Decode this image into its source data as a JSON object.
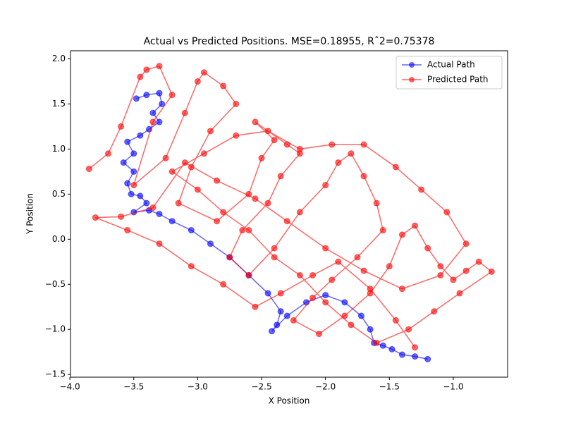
{
  "chart_data": {
    "type": "line",
    "title": "Actual vs Predicted Positions. MSE=0.18955, Rˆ2=0.75378",
    "xlabel": "X Position",
    "ylabel": "Y Position",
    "xlim": [
      -3.995,
      -0.575
    ],
    "ylim": [
      -1.53,
      2.09
    ],
    "xticks": [
      {
        "value": -4,
        "label": "−4.0"
      },
      {
        "value": -3.5,
        "label": "−3.5"
      },
      {
        "value": -3,
        "label": "−3.0"
      },
      {
        "value": -2.5,
        "label": "−2.5"
      },
      {
        "value": -2,
        "label": "−2.0"
      },
      {
        "value": -1.5,
        "label": "−1.5"
      },
      {
        "value": -1,
        "label": "−1.0"
      }
    ],
    "yticks": [
      {
        "value": -1.5,
        "label": "−1.5"
      },
      {
        "value": -1,
        "label": "−1.0"
      },
      {
        "value": -0.5,
        "label": "−0.5"
      },
      {
        "value": 0,
        "label": "0.0"
      },
      {
        "value": 0.5,
        "label": "0.5"
      },
      {
        "value": 1,
        "label": "1.0"
      },
      {
        "value": 1.5,
        "label": "1.5"
      },
      {
        "value": 2,
        "label": "2.0"
      }
    ],
    "legend": "upper right",
    "series": [
      {
        "name": "Actual Path",
        "color": "#0000ff",
        "x": [
          -3.48,
          -3.4,
          -3.3,
          -3.28,
          -3.35,
          -3.3,
          -3.38,
          -3.45,
          -3.55,
          -3.5,
          -3.58,
          -3.5,
          -3.55,
          -3.52,
          -3.45,
          -3.4,
          -3.5,
          -3.38,
          -3.3,
          -3.2,
          -3.05,
          -2.9,
          -2.75,
          -2.6,
          -2.45,
          -2.35,
          -2.38,
          -2.42,
          -2.3,
          -2.15,
          -2.0,
          -1.85,
          -1.72,
          -1.65,
          -1.62,
          -1.55,
          -1.48,
          -1.4,
          -1.3,
          -1.2
        ],
        "y": [
          1.56,
          1.6,
          1.62,
          1.5,
          1.4,
          1.3,
          1.22,
          1.15,
          1.08,
          0.95,
          0.85,
          0.75,
          0.62,
          0.5,
          0.48,
          0.4,
          0.3,
          0.32,
          0.28,
          0.2,
          0.1,
          -0.05,
          -0.2,
          -0.4,
          -0.6,
          -0.8,
          -0.95,
          -1.02,
          -0.85,
          -0.7,
          -0.62,
          -0.7,
          -0.85,
          -1.0,
          -1.15,
          -1.18,
          -1.22,
          -1.28,
          -1.3,
          -1.33
        ]
      },
      {
        "name": "Predicted Path",
        "color": "#ff0000",
        "x": [
          -3.85,
          -3.7,
          -3.6,
          -3.45,
          -3.4,
          -3.3,
          -3.2,
          -3.35,
          -3.5,
          -3.25,
          -3.1,
          -3.0,
          -2.95,
          -2.8,
          -2.7,
          -2.9,
          -3.05,
          -3.15,
          -2.85,
          -2.6,
          -2.5,
          -2.4,
          -2.55,
          -2.3,
          -2.2,
          -2.35,
          -2.45,
          -2.65,
          -2.75,
          -2.6,
          -2.4,
          -2.2,
          -2.0,
          -1.9,
          -1.8,
          -1.7,
          -1.6,
          -1.55,
          -1.75,
          -1.95,
          -2.1,
          -2.25,
          -2.05,
          -1.85,
          -1.65,
          -1.5,
          -1.4,
          -1.3,
          -1.2,
          -1.1,
          -1.0,
          -0.9,
          -0.8,
          -0.7,
          -0.95,
          -1.15,
          -1.35,
          -1.6,
          -1.8,
          -2.0,
          -2.2,
          -2.4,
          -2.6,
          -2.8,
          -3.0,
          -3.2,
          -2.95,
          -2.7,
          -2.45,
          -2.2,
          -1.95,
          -1.7,
          -1.45,
          -1.25,
          -1.05,
          -0.9,
          -1.1,
          -1.4,
          -1.7,
          -2.0,
          -2.3,
          -2.55,
          -2.85,
          -3.1,
          -3.35,
          -3.6,
          -3.8,
          -3.55,
          -3.3,
          -3.05,
          -2.8,
          -2.55,
          -2.35,
          -2.1,
          -1.9,
          -1.65,
          -1.45,
          -1.3
        ],
        "y": [
          0.78,
          0.95,
          1.25,
          1.8,
          1.88,
          1.92,
          1.6,
          1.3,
          0.6,
          0.9,
          1.4,
          1.75,
          1.85,
          1.7,
          1.5,
          1.2,
          0.8,
          0.4,
          0.2,
          0.5,
          0.9,
          1.1,
          1.3,
          1.05,
          0.95,
          0.7,
          0.4,
          0.1,
          -0.2,
          -0.4,
          -0.1,
          0.3,
          0.6,
          0.85,
          0.95,
          0.7,
          0.4,
          0.1,
          -0.2,
          -0.45,
          -0.65,
          -0.9,
          -1.05,
          -0.85,
          -0.6,
          -0.3,
          0.05,
          0.15,
          -0.1,
          -0.3,
          -0.45,
          -0.35,
          -0.25,
          -0.36,
          -0.6,
          -0.8,
          -1.0,
          -1.15,
          -0.95,
          -0.7,
          -0.4,
          -0.2,
          0.1,
          0.3,
          0.55,
          0.75,
          0.95,
          1.15,
          1.2,
          1.0,
          1.05,
          1.05,
          0.8,
          0.55,
          0.3,
          -0.05,
          -0.4,
          -0.55,
          -0.35,
          -0.1,
          0.2,
          0.45,
          0.65,
          0.85,
          0.35,
          0.25,
          0.24,
          0.1,
          -0.05,
          -0.3,
          -0.5,
          -0.75,
          -0.6,
          -0.4,
          -0.25,
          -0.55,
          -0.9,
          -1.2
        ]
      }
    ]
  }
}
